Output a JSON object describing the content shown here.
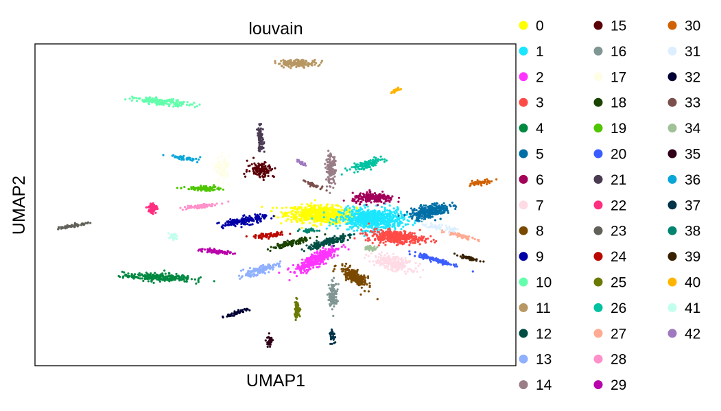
{
  "chart_data": {
    "type": "scatter",
    "title": "louvain",
    "xlabel": "UMAP1",
    "ylabel": "UMAP2",
    "xlim": [
      0,
      100
    ],
    "ylim": [
      0,
      100
    ],
    "grid": false,
    "ticks": false,
    "legend_position": "right",
    "clusters": [
      {
        "name": "0",
        "color": "#ffff00",
        "x": 59.5,
        "y": 47.0,
        "sx": 6.5,
        "sy": 2.4,
        "n": 720,
        "rot": -4
      },
      {
        "name": "1",
        "color": "#1ce6ff",
        "x": 70.0,
        "y": 45.5,
        "sx": 6.0,
        "sy": 3.0,
        "n": 720,
        "rot": 0
      },
      {
        "name": "2",
        "color": "#ff34ff",
        "x": 58.5,
        "y": 33.0,
        "sx": 4.6,
        "sy": 1.6,
        "n": 380,
        "rot": 40
      },
      {
        "name": "3",
        "color": "#ff4a46",
        "x": 75.0,
        "y": 40.0,
        "sx": 5.5,
        "sy": 1.8,
        "n": 350,
        "rot": -6
      },
      {
        "name": "4",
        "color": "#008941",
        "x": 25.5,
        "y": 27.5,
        "sx": 6.5,
        "sy": 1.1,
        "n": 260,
        "rot": -3
      },
      {
        "name": "5",
        "color": "#006fa6",
        "x": 82.0,
        "y": 48.0,
        "sx": 4.0,
        "sy": 1.8,
        "n": 280,
        "rot": 20
      },
      {
        "name": "6",
        "color": "#a30059",
        "x": 70.5,
        "y": 52.0,
        "sx": 4.0,
        "sy": 1.4,
        "n": 200,
        "rot": 0
      },
      {
        "name": "7",
        "color": "#ffdbe5",
        "x": 74.5,
        "y": 32.0,
        "sx": 4.0,
        "sy": 1.8,
        "n": 240,
        "rot": -25
      },
      {
        "name": "8",
        "color": "#7a4900",
        "x": 66.5,
        "y": 27.5,
        "sx": 3.5,
        "sy": 1.5,
        "n": 220,
        "rot": -50
      },
      {
        "name": "9",
        "color": "#0000a6",
        "x": 43.5,
        "y": 45.0,
        "sx": 4.5,
        "sy": 1.1,
        "n": 160,
        "rot": 15
      },
      {
        "name": "10",
        "color": "#63ffac",
        "x": 26.5,
        "y": 82.0,
        "sx": 5.5,
        "sy": 0.9,
        "n": 160,
        "rot": -8
      },
      {
        "name": "11",
        "color": "#b79762",
        "x": 54.5,
        "y": 94.0,
        "sx": 3.8,
        "sy": 1.0,
        "n": 150,
        "rot": 0
      },
      {
        "name": "12",
        "color": "#004d43",
        "x": 61.0,
        "y": 38.5,
        "sx": 4.5,
        "sy": 1.0,
        "n": 160,
        "rot": 25
      },
      {
        "name": "13",
        "color": "#8fb0ff",
        "x": 46.5,
        "y": 29.5,
        "sx": 4.0,
        "sy": 1.0,
        "n": 150,
        "rot": 25
      },
      {
        "name": "14",
        "color": "#997d87",
        "x": 61.5,
        "y": 61.0,
        "sx": 0.9,
        "sy": 4.0,
        "n": 140,
        "rot": 0
      },
      {
        "name": "15",
        "color": "#5a0007",
        "x": 47.0,
        "y": 61.0,
        "sx": 2.5,
        "sy": 2.3,
        "n": 120,
        "rot": 0
      },
      {
        "name": "16",
        "color": "#809693",
        "x": 62.0,
        "y": 22.0,
        "sx": 0.8,
        "sy": 3.5,
        "n": 120,
        "rot": 0
      },
      {
        "name": "17",
        "color": "#fefee6",
        "x": 39.0,
        "y": 61.0,
        "sx": 1.3,
        "sy": 3.5,
        "n": 90,
        "rot": 0
      },
      {
        "name": "18",
        "color": "#1b4400",
        "x": 53.0,
        "y": 38.0,
        "sx": 4.0,
        "sy": 0.7,
        "n": 110,
        "rot": 20
      },
      {
        "name": "19",
        "color": "#4fc601",
        "x": 35.0,
        "y": 55.0,
        "sx": 3.3,
        "sy": 0.6,
        "n": 90,
        "rot": 0
      },
      {
        "name": "20",
        "color": "#3b5dff",
        "x": 83.0,
        "y": 33.0,
        "sx": 4.5,
        "sy": 0.7,
        "n": 110,
        "rot": -25
      },
      {
        "name": "21",
        "color": "#4a3b53",
        "x": 46.9,
        "y": 70.5,
        "sx": 0.6,
        "sy": 3.5,
        "n": 90,
        "rot": 0
      },
      {
        "name": "22",
        "color": "#ff2f80",
        "x": 24.5,
        "y": 49.0,
        "sx": 0.8,
        "sy": 1.5,
        "n": 60,
        "rot": 0
      },
      {
        "name": "23",
        "color": "#61615a",
        "x": 7.8,
        "y": 43.5,
        "sx": 3.2,
        "sy": 0.45,
        "n": 70,
        "rot": 15
      },
      {
        "name": "24",
        "color": "#ba0900",
        "x": 49.0,
        "y": 40.5,
        "sx": 3.0,
        "sy": 0.6,
        "n": 70,
        "rot": 8
      },
      {
        "name": "25",
        "color": "#6b7900",
        "x": 54.5,
        "y": 17.5,
        "sx": 0.6,
        "sy": 2.5,
        "n": 60,
        "rot": 0
      },
      {
        "name": "26",
        "color": "#00c2a0",
        "x": 69.0,
        "y": 62.5,
        "sx": 3.5,
        "sy": 1.1,
        "n": 110,
        "rot": 25
      },
      {
        "name": "27",
        "color": "#ffaa92",
        "x": 88.5,
        "y": 40.5,
        "sx": 2.8,
        "sy": 0.6,
        "n": 60,
        "rot": -20
      },
      {
        "name": "28",
        "color": "#ff90c9",
        "x": 34.0,
        "y": 49.5,
        "sx": 3.5,
        "sy": 0.6,
        "n": 70,
        "rot": 10
      },
      {
        "name": "29",
        "color": "#b903aa",
        "x": 37.5,
        "y": 35.5,
        "sx": 3.5,
        "sy": 0.6,
        "n": 70,
        "rot": -10
      },
      {
        "name": "30",
        "color": "#d16100",
        "x": 93.0,
        "y": 57.0,
        "sx": 2.2,
        "sy": 0.6,
        "n": 60,
        "rot": 15
      },
      {
        "name": "31",
        "color": "#ddefff",
        "x": 84.0,
        "y": 43.0,
        "sx": 3.0,
        "sy": 0.7,
        "n": 60,
        "rot": -15
      },
      {
        "name": "32",
        "color": "#000035",
        "x": 42.0,
        "y": 16.5,
        "sx": 2.5,
        "sy": 0.45,
        "n": 50,
        "rot": 25
      },
      {
        "name": "33",
        "color": "#7b4f4b",
        "x": 58.0,
        "y": 56.0,
        "sx": 2.0,
        "sy": 0.5,
        "n": 40,
        "rot": -35
      },
      {
        "name": "34",
        "color": "#a1c299",
        "x": 69.5,
        "y": 36.5,
        "sx": 1.5,
        "sy": 0.6,
        "n": 40,
        "rot": 0
      },
      {
        "name": "35",
        "color": "#300018",
        "x": 48.8,
        "y": 7.5,
        "sx": 0.5,
        "sy": 1.8,
        "n": 40,
        "rot": 0
      },
      {
        "name": "36",
        "color": "#0aa6d8",
        "x": 31.0,
        "y": 64.5,
        "sx": 3.0,
        "sy": 0.5,
        "n": 50,
        "rot": -15
      },
      {
        "name": "37",
        "color": "#013349",
        "x": 61.8,
        "y": 9.5,
        "sx": 0.5,
        "sy": 1.8,
        "n": 40,
        "rot": 0
      },
      {
        "name": "38",
        "color": "#00846f",
        "x": 57.0,
        "y": 42.0,
        "sx": 1.5,
        "sy": 0.6,
        "n": 40,
        "rot": 0
      },
      {
        "name": "39",
        "color": "#372101",
        "x": 90.0,
        "y": 33.5,
        "sx": 2.3,
        "sy": 0.4,
        "n": 50,
        "rot": -20
      },
      {
        "name": "40",
        "color": "#ffb500",
        "x": 75.0,
        "y": 85.5,
        "sx": 1.3,
        "sy": 0.35,
        "n": 30,
        "rot": 45
      },
      {
        "name": "41",
        "color": "#c2ffed",
        "x": 28.7,
        "y": 40.0,
        "sx": 0.8,
        "sy": 0.9,
        "n": 30,
        "rot": 0
      },
      {
        "name": "42",
        "color": "#a079bf",
        "x": 55.5,
        "y": 63.0,
        "sx": 1.0,
        "sy": 0.45,
        "n": 25,
        "rot": -35
      }
    ]
  }
}
